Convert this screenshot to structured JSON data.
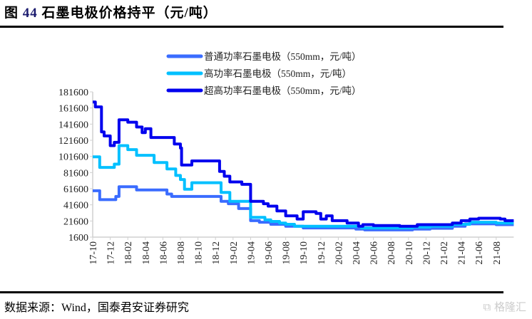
{
  "title_prefix": "图",
  "title_number": "44",
  "title_text": "石墨电极价格持平（元/吨）",
  "source": "数据来源：Wind，国泰君安证券研究",
  "logo": "格隆汇",
  "chart_data": {
    "type": "line",
    "title": "石墨电极价格持平（元/吨）",
    "xlabel": "",
    "ylabel": "",
    "ylim": [
      1600,
      181600
    ],
    "yticks": [
      1600,
      21600,
      41600,
      61600,
      81600,
      101600,
      121600,
      141600,
      161600,
      181600
    ],
    "xlim": [
      "2017-10",
      "2021-10"
    ],
    "xticks": [
      "17-10",
      "17-12",
      "18-02",
      "18-04",
      "18-06",
      "18-08",
      "18-10",
      "18-12",
      "19-02",
      "19-04",
      "19-06",
      "19-08",
      "19-10",
      "19-12",
      "20-02",
      "20-04",
      "20-06",
      "20-08",
      "20-10",
      "20-12",
      "21-02",
      "21-04",
      "21-06",
      "21-08"
    ],
    "grid": false,
    "legend_position": "top-center",
    "series": [
      {
        "name": "普通功率石墨电极（550mm，元/吨）",
        "color": "#3a6cff",
        "points": [
          [
            "2017-10-01",
            59000
          ],
          [
            "2017-10-25",
            48000
          ],
          [
            "2017-12-20",
            52000
          ],
          [
            "2018-01-01",
            64000
          ],
          [
            "2018-03-01",
            60000
          ],
          [
            "2018-06-15",
            55000
          ],
          [
            "2018-07-01",
            52000
          ],
          [
            "2018-12-20",
            46000
          ],
          [
            "2019-01-15",
            43000
          ],
          [
            "2019-02-20",
            37000
          ],
          [
            "2019-04-01",
            22000
          ],
          [
            "2019-05-01",
            20000
          ],
          [
            "2019-06-10",
            17500
          ],
          [
            "2019-08-01",
            15000
          ],
          [
            "2019-10-01",
            13000
          ],
          [
            "2020-04-01",
            11500
          ],
          [
            "2020-05-01",
            10500
          ],
          [
            "2020-10-15",
            11500
          ],
          [
            "2020-12-15",
            12500
          ],
          [
            "2021-03-01",
            15000
          ],
          [
            "2021-04-15",
            18000
          ],
          [
            "2021-08-01",
            17000
          ],
          [
            "2021-10-01",
            17000
          ]
        ]
      },
      {
        "name": "高功率石墨电极（550mm，元/吨）",
        "color": "#00c0ff",
        "points": [
          [
            "2017-10-01",
            101000
          ],
          [
            "2017-10-25",
            88000
          ],
          [
            "2017-12-15",
            92000
          ],
          [
            "2018-01-01",
            115000
          ],
          [
            "2018-02-01",
            110000
          ],
          [
            "2018-03-01",
            103000
          ],
          [
            "2018-05-01",
            94000
          ],
          [
            "2018-06-15",
            86000
          ],
          [
            "2018-07-15",
            78000
          ],
          [
            "2018-08-01",
            73000
          ],
          [
            "2018-08-15",
            61000
          ],
          [
            "2018-09-10",
            69000
          ],
          [
            "2018-12-20",
            57000
          ],
          [
            "2019-01-20",
            46000
          ],
          [
            "2019-04-01",
            26000
          ],
          [
            "2019-05-20",
            23000
          ],
          [
            "2019-06-10",
            21000
          ],
          [
            "2019-07-10",
            19000
          ],
          [
            "2019-08-01",
            17500
          ],
          [
            "2019-09-01",
            15000
          ],
          [
            "2020-04-20",
            13000
          ],
          [
            "2020-10-15",
            14000
          ],
          [
            "2020-12-15",
            15000
          ],
          [
            "2021-03-01",
            17500
          ],
          [
            "2021-05-01",
            20000
          ],
          [
            "2021-08-01",
            19000
          ],
          [
            "2021-10-01",
            19000
          ]
        ]
      },
      {
        "name": "超高功率石墨电极（550mm，元/吨）",
        "color": "#0000ee",
        "points": [
          [
            "2017-10-01",
            169000
          ],
          [
            "2017-10-10",
            163000
          ],
          [
            "2017-11-01",
            132000
          ],
          [
            "2017-11-10",
            127000
          ],
          [
            "2017-12-01",
            115000
          ],
          [
            "2017-12-15",
            119000
          ],
          [
            "2018-01-01",
            147000
          ],
          [
            "2018-02-01",
            144000
          ],
          [
            "2018-03-01",
            138000
          ],
          [
            "2018-03-20",
            131000
          ],
          [
            "2018-04-01",
            136000
          ],
          [
            "2018-04-20",
            125000
          ],
          [
            "2018-07-10",
            117000
          ],
          [
            "2018-08-01",
            112000
          ],
          [
            "2018-08-05",
            91000
          ],
          [
            "2018-09-10",
            96000
          ],
          [
            "2018-12-15",
            83000
          ],
          [
            "2019-01-01",
            77000
          ],
          [
            "2019-01-20",
            70000
          ],
          [
            "2019-03-01",
            67000
          ],
          [
            "2019-04-01",
            46000
          ],
          [
            "2019-05-15",
            43000
          ],
          [
            "2019-06-01",
            40000
          ],
          [
            "2019-07-01",
            34000
          ],
          [
            "2019-08-01",
            28000
          ],
          [
            "2019-09-10",
            24000
          ],
          [
            "2019-10-01",
            33000
          ],
          [
            "2019-11-15",
            31000
          ],
          [
            "2019-12-01",
            24000
          ],
          [
            "2019-12-20",
            28000
          ],
          [
            "2020-01-10",
            22000
          ],
          [
            "2020-03-01",
            19000
          ],
          [
            "2020-04-10",
            15000
          ],
          [
            "2020-04-25",
            17000
          ],
          [
            "2020-06-01",
            16000
          ],
          [
            "2020-09-01",
            15000
          ],
          [
            "2020-11-01",
            17000
          ],
          [
            "2021-03-01",
            19000
          ],
          [
            "2021-04-01",
            22000
          ],
          [
            "2021-05-01",
            24000
          ],
          [
            "2021-06-01",
            25000
          ],
          [
            "2021-08-15",
            24000
          ],
          [
            "2021-09-01",
            22000
          ],
          [
            "2021-10-01",
            22000
          ]
        ]
      }
    ]
  }
}
